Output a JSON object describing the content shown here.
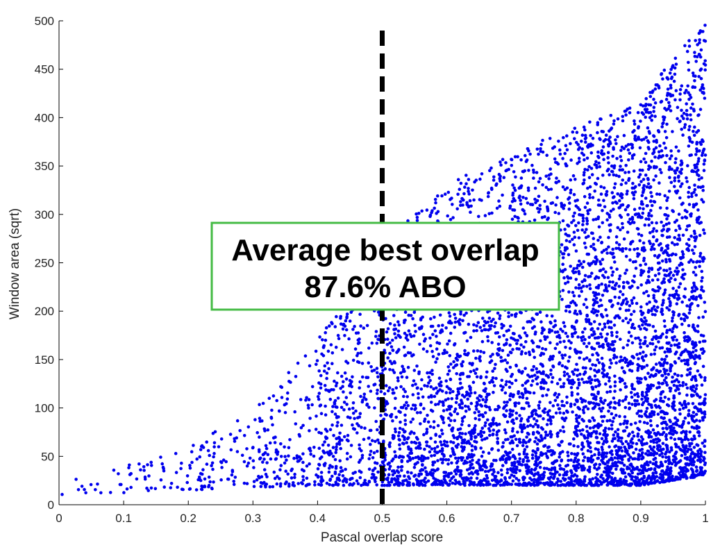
{
  "chart_data": {
    "type": "scatter",
    "title": "",
    "xlabel": "Pascal overlap score",
    "ylabel": "Window area (sqrt)",
    "xlim": [
      0,
      1
    ],
    "ylim": [
      0,
      500
    ],
    "x_ticks": [
      0,
      0.1,
      0.2,
      0.3,
      0.4,
      0.5,
      0.6,
      0.7,
      0.8,
      0.9,
      1
    ],
    "x_tick_labels": [
      "0",
      "0.1",
      "0.2",
      "0.3",
      "0.4",
      "0.5",
      "0.6",
      "0.7",
      "0.8",
      "0.9",
      "1"
    ],
    "y_ticks": [
      0,
      50,
      100,
      150,
      200,
      250,
      300,
      350,
      400,
      450,
      500
    ],
    "y_tick_labels": [
      "0",
      "50",
      "100",
      "150",
      "200",
      "250",
      "300",
      "350",
      "400",
      "450",
      "500"
    ],
    "grid": false,
    "series_color": "#0000ee",
    "threshold": {
      "x": 0.5,
      "style": "dashed",
      "color": "#000000"
    },
    "annotation": {
      "line1": "Average best overlap",
      "line2": "87.6% ABO",
      "border_color": "#44bb44"
    },
    "point_density_profile": [
      {
        "x": 0.0,
        "count": 5,
        "y_min": 10,
        "y_max": 22
      },
      {
        "x": 0.1,
        "count": 25,
        "y_min": 12,
        "y_max": 40
      },
      {
        "x": 0.2,
        "count": 55,
        "y_min": 15,
        "y_max": 60
      },
      {
        "x": 0.3,
        "count": 110,
        "y_min": 18,
        "y_max": 100
      },
      {
        "x": 0.4,
        "count": 220,
        "y_min": 20,
        "y_max": 170
      },
      {
        "x": 0.5,
        "count": 600,
        "y_min": 20,
        "y_max": 270
      },
      {
        "x": 0.6,
        "count": 800,
        "y_min": 20,
        "y_max": 330
      },
      {
        "x": 0.7,
        "count": 950,
        "y_min": 20,
        "y_max": 365
      },
      {
        "x": 0.8,
        "count": 1100,
        "y_min": 20,
        "y_max": 390
      },
      {
        "x": 0.9,
        "count": 1400,
        "y_min": 20,
        "y_max": 420
      },
      {
        "x": 1.0,
        "count": 1700,
        "y_min": 30,
        "y_max": 500
      }
    ]
  }
}
